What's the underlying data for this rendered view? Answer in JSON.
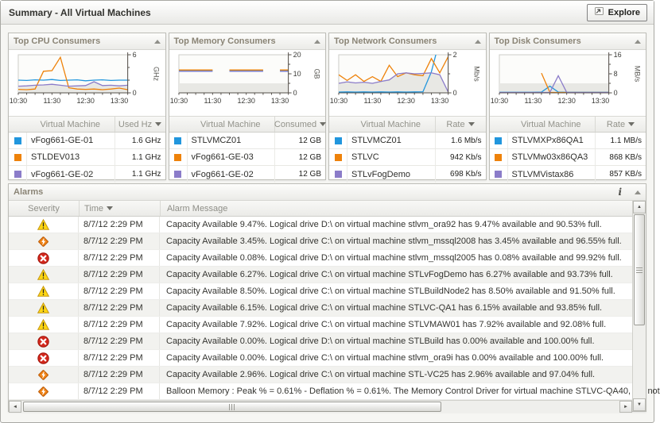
{
  "header": {
    "title": "Summary - All Virtual Machines",
    "explore_label": "Explore"
  },
  "icons": {
    "explore": "enter-arrow",
    "info": "i",
    "collapse": "triangle-up",
    "sort_desc": "triangle-down",
    "scroll_up": "▲",
    "scroll_down": "▼",
    "scroll_left": "◄",
    "scroll_right": "►"
  },
  "colors": {
    "series_blue": "#2196dd",
    "series_orange": "#ee820a",
    "series_purple": "#8b7cc9",
    "warning": "#ffd712",
    "critical": "#f08418",
    "fatal": "#d3281c"
  },
  "panels": [
    {
      "title": "Top CPU Consumers",
      "columns": [
        "Virtual Machine",
        "Used Hz"
      ],
      "rows": [
        {
          "color": "blue",
          "name": "vFog661-GE-01",
          "value": "1.6 GHz"
        },
        {
          "color": "orange",
          "name": "STLDEV013",
          "value": "1.1 GHz"
        },
        {
          "color": "purple",
          "name": "vFog661-GE-02",
          "value": "1.1 GHz"
        }
      ]
    },
    {
      "title": "Top Memory Consumers",
      "columns": [
        "Virtual Machine",
        "Consumed"
      ],
      "rows": [
        {
          "color": "blue",
          "name": "STLVMCZ01",
          "value": "12 GB"
        },
        {
          "color": "orange",
          "name": "vFog661-GE-03",
          "value": "12 GB"
        },
        {
          "color": "purple",
          "name": "vFog661-GE-02",
          "value": "12 GB"
        }
      ]
    },
    {
      "title": "Top Network Consumers",
      "columns": [
        "Virtual Machine",
        "Rate"
      ],
      "rows": [
        {
          "color": "blue",
          "name": "STLVMCZ01",
          "value": "1.6 Mb/s"
        },
        {
          "color": "orange",
          "name": "STLVC",
          "value": "942 Kb/s"
        },
        {
          "color": "purple",
          "name": "STLvFogDemo",
          "value": "698 Kb/s"
        }
      ]
    },
    {
      "title": "Top Disk Consumers",
      "columns": [
        "Virtual Machine",
        "Rate"
      ],
      "rows": [
        {
          "color": "blue",
          "name": "STLVMXPx86QA1",
          "value": "1.1 MB/s"
        },
        {
          "color": "orange",
          "name": "STLVMw03x86QA3",
          "value": "868 KB/s"
        },
        {
          "color": "purple",
          "name": "STLVMVistax86",
          "value": "857 KB/s"
        }
      ]
    }
  ],
  "chart_data": [
    {
      "type": "line",
      "title": "Top CPU Consumers",
      "ylabel": "GHz",
      "ylim": [
        0,
        6
      ],
      "yticks": [
        0,
        6
      ],
      "yminors": [
        2,
        4
      ],
      "x": [
        "10:30",
        "10:45",
        "11:00",
        "11:15",
        "11:30",
        "11:45",
        "12:00",
        "12:15",
        "12:30",
        "12:45",
        "13:00",
        "13:15",
        "13:30",
        "13:45"
      ],
      "xtick_labels": [
        "10:30",
        "11:30",
        "12:30",
        "13:30"
      ],
      "series": [
        {
          "name": "vFog661-GE-01",
          "color": "blue",
          "values": [
            2,
            1.95,
            2.05,
            2,
            2.1,
            1.95,
            2,
            2.05,
            1.9,
            2,
            2.05,
            1.95,
            2,
            2
          ]
        },
        {
          "name": "STLDEV013",
          "color": "orange",
          "values": [
            0.55,
            0.5,
            0.6,
            3.4,
            3.5,
            5.6,
            0.8,
            0.6,
            0.55,
            0.6,
            0.5,
            0.6,
            0.75,
            0.5
          ]
        },
        {
          "name": "vFog661-GE-02",
          "color": "purple",
          "values": [
            1.05,
            1.1,
            1.2,
            1.25,
            1.35,
            1.2,
            1.05,
            1.1,
            1.15,
            1.75,
            1.15,
            1.2,
            1.1,
            1.2
          ]
        }
      ],
      "gray_area": [
        1.05,
        1.1,
        1.2,
        1.25,
        1.35,
        1.2,
        1.05,
        1.1,
        1.15,
        1.75,
        1.15,
        1.2,
        1.1,
        1.2
      ]
    },
    {
      "type": "line",
      "title": "Top Memory Consumers",
      "ylabel": "GB",
      "ylim": [
        0,
        20
      ],
      "yticks": [
        0,
        10,
        20
      ],
      "yminors": [
        5,
        15
      ],
      "x": [
        "10:30",
        "10:45",
        "11:00",
        "11:15",
        "11:30",
        "11:45",
        "12:00",
        "12:15",
        "12:30",
        "12:45",
        "13:00",
        "13:15",
        "13:30",
        "13:45"
      ],
      "xtick_labels": [
        "10:30",
        "11:30",
        "12:30",
        "13:30"
      ],
      "series": [
        {
          "name": "STLVMCZ01",
          "color": "blue",
          "values": [
            11.6,
            11.6,
            11.6,
            11.6,
            11.6,
            null,
            11.6,
            11.6,
            11.6,
            11.6,
            11.6,
            null,
            11.6,
            11.6
          ]
        },
        {
          "name": "vFog661-GE-03",
          "color": "orange",
          "values": [
            12,
            12,
            12,
            12,
            12,
            null,
            12,
            12,
            12,
            12,
            12,
            null,
            12,
            12
          ]
        },
        {
          "name": "vFog661-GE-02",
          "color": "purple",
          "values": [
            11.3,
            11.3,
            11.3,
            11.3,
            11.3,
            null,
            11.3,
            11.3,
            11.3,
            11.3,
            11.3,
            null,
            11.3,
            11.3
          ]
        }
      ],
      "gray_area": [
        5,
        5,
        5,
        5,
        5,
        5,
        5,
        5,
        5,
        5,
        5,
        5,
        5,
        5
      ]
    },
    {
      "type": "line",
      "title": "Top Network Consumers",
      "ylabel": "Mb/s",
      "ylim": [
        0,
        2
      ],
      "yticks": [
        0,
        2
      ],
      "yminors": [
        1
      ],
      "x": [
        "10:30",
        "10:45",
        "11:00",
        "11:15",
        "11:30",
        "11:45",
        "12:00",
        "12:15",
        "12:30",
        "12:45",
        "13:00",
        "13:15",
        "13:30",
        "13:45"
      ],
      "xtick_labels": [
        "10:30",
        "11:30",
        "12:30",
        "13:30"
      ],
      "series": [
        {
          "name": "STLVMCZ01",
          "color": "blue",
          "values": [
            0.04,
            0.05,
            0.04,
            0.05,
            0.04,
            0.05,
            0.04,
            0.05,
            0.04,
            0.05,
            0.06,
            1.1,
            2.8,
            2.9
          ]
        },
        {
          "name": "STLVC",
          "color": "orange",
          "values": [
            0.95,
            0.65,
            0.95,
            0.6,
            0.85,
            0.6,
            1.45,
            0.85,
            1.05,
            0.95,
            0.9,
            1.8,
            1.05,
            1.9
          ]
        },
        {
          "name": "STLvFogDemo",
          "color": "purple",
          "values": [
            0.5,
            0.58,
            0.52,
            0.56,
            0.5,
            0.6,
            0.68,
            1.0,
            1.05,
            1.0,
            1.02,
            1.05,
            0.95,
            0.05
          ]
        }
      ],
      "gray_area": [
        0.5,
        0.58,
        0.52,
        0.56,
        0.5,
        0.6,
        0.68,
        1.0,
        1.05,
        1.0,
        1.02,
        1.05,
        0.95,
        0.05
      ]
    },
    {
      "type": "line",
      "title": "Top Disk Consumers",
      "ylabel": "MB/s",
      "ylim": [
        0,
        16
      ],
      "yticks": [
        0,
        8,
        16
      ],
      "yminors": [
        4,
        12
      ],
      "x": [
        "10:30",
        "10:45",
        "11:00",
        "11:15",
        "11:30",
        "11:45",
        "12:00",
        "12:15",
        "12:30",
        "12:45",
        "13:00",
        "13:15",
        "13:30",
        "13:45"
      ],
      "xtick_labels": [
        "10:30",
        "11:30",
        "12:30",
        "13:30"
      ],
      "series": [
        {
          "name": "STLVMXPx86QA1",
          "color": "blue",
          "values": [
            0.25,
            0.25,
            0.25,
            0.25,
            0.25,
            0.35,
            2.8,
            0.35,
            0.25,
            0.25,
            0.25,
            0.25,
            0.25,
            0.25
          ]
        },
        {
          "name": "STLVMw03x86QA3",
          "color": "orange",
          "values": [
            null,
            null,
            null,
            null,
            null,
            8.3,
            0.2,
            0.15,
            0.15,
            0.15,
            0.15,
            0.15,
            0.15,
            0.15
          ]
        },
        {
          "name": "STLVMVistax86",
          "color": "purple",
          "values": [
            0.15,
            0.15,
            0.15,
            0.15,
            0.15,
            0.15,
            0.2,
            7.2,
            0.2,
            0.15,
            0.15,
            0.15,
            0.15,
            0.15
          ]
        }
      ],
      "gray_area": [
        4,
        4,
        4,
        4,
        4,
        4,
        4,
        4,
        4,
        4,
        4,
        4,
        4,
        4
      ]
    }
  ],
  "alarms": {
    "title": "Alarms",
    "columns": [
      "Severity",
      "Time",
      "Alarm Message"
    ],
    "rows": [
      {
        "severity": "warning",
        "time": "8/7/12 2:29 PM",
        "message": "Capacity Available 9.47%. Logical drive D:\\ on virtual machine stlvm_ora92 has 9.47% available and 90.53% full."
      },
      {
        "severity": "critical",
        "time": "8/7/12 2:29 PM",
        "message": "Capacity Available 3.45%. Logical drive C:\\ on virtual machine stlvm_mssql2008 has 3.45% available and 96.55% full."
      },
      {
        "severity": "fatal",
        "time": "8/7/12 2:29 PM",
        "message": "Capacity Available 0.08%. Logical drive D:\\ on virtual machine stlvm_mssql2005 has 0.08% available and 99.92% full."
      },
      {
        "severity": "warning",
        "time": "8/7/12 2:29 PM",
        "message": "Capacity Available 6.27%. Logical drive C:\\ on virtual machine STLvFogDemo has 6.27% available and 93.73% full."
      },
      {
        "severity": "warning",
        "time": "8/7/12 2:29 PM",
        "message": "Capacity Available 8.50%. Logical drive C:\\ on virtual machine STLBuildNode2 has 8.50% available and 91.50% full."
      },
      {
        "severity": "warning",
        "time": "8/7/12 2:29 PM",
        "message": "Capacity Available 6.15%. Logical drive C:\\ on virtual machine STLVC-QA1 has 6.15% available and 93.85% full."
      },
      {
        "severity": "warning",
        "time": "8/7/12 2:29 PM",
        "message": "Capacity Available 7.92%. Logical drive C:\\ on virtual machine STLVMAW01 has 7.92% available and 92.08% full."
      },
      {
        "severity": "fatal",
        "time": "8/7/12 2:29 PM",
        "message": "Capacity Available 0.00%. Logical drive D:\\ on virtual machine STLBuild has 0.00% available and 100.00% full."
      },
      {
        "severity": "fatal",
        "time": "8/7/12 2:29 PM",
        "message": "Capacity Available 0.00%. Logical drive C:\\ on virtual machine stlvm_ora9i has 0.00% available and 100.00% full."
      },
      {
        "severity": "critical",
        "time": "8/7/12 2:29 PM",
        "message": "Capacity Available 2.96%. Logical drive C:\\ on virtual machine STL-VC25 has 2.96% available and 97.04% full."
      },
      {
        "severity": "critical",
        "time": "8/7/12 2:29 PM",
        "message": "Balloon Memory : Peak % = 0.61% - Deflation % = 0.61%. The Memory Control Driver for virtual machine STLVC-QA40, will not"
      }
    ]
  }
}
